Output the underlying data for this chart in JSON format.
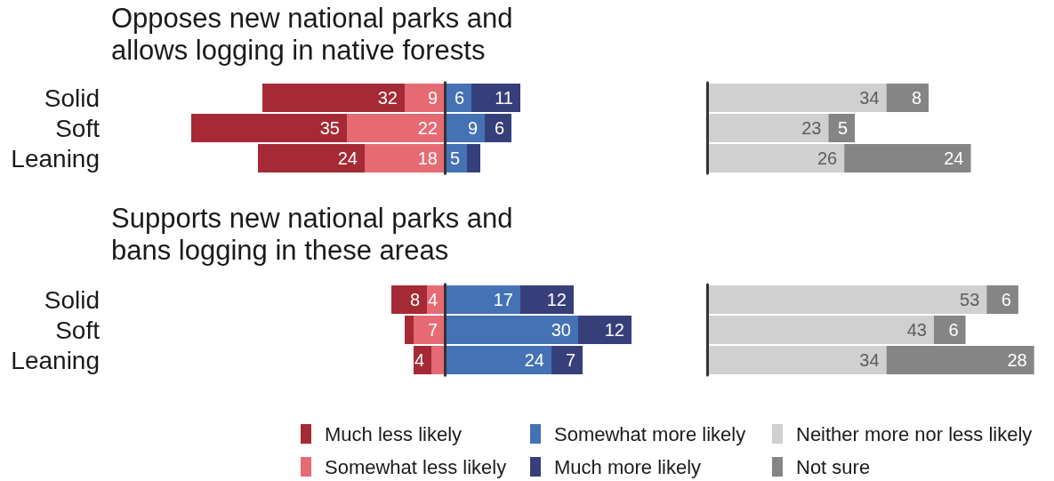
{
  "chart_data": [
    {
      "type": "bar",
      "title": "Opposes new national parks and allows logging in native forests",
      "orientation": "horizontal",
      "stacked": true,
      "categories": [
        "Solid",
        "Soft",
        "Leaning"
      ],
      "xlim": [
        57,
        0
      ],
      "tick_labels": "y",
      "data_labels": true,
      "series": [
        {
          "color": "#e66a74",
          "values": [
            9,
            22,
            18
          ]
        },
        {
          "color": "#a52a35",
          "values": [
            32,
            35,
            24
          ]
        }
      ]
    },
    {
      "type": "bar",
      "orientation": "horizontal",
      "stacked": true,
      "categories": [
        null,
        null,
        null
      ],
      "tick_labels": false,
      "series": [
        {
          "color": "#4472b4",
          "values": [
            6,
            9,
            5
          ],
          "value_labels": [
            "6",
            "9",
            "5"
          ]
        },
        {
          "color": "#373f7a",
          "values": [
            11,
            6,
            3
          ],
          "value_labels": [
            "11",
            "6",
            null
          ]
        }
      ]
    },
    {
      "type": "bar",
      "orientation": "horizontal",
      "stacked": true,
      "categories": [
        null,
        null,
        null
      ],
      "tick_labels": false,
      "data_labels": true,
      "series": [
        {
          "color": "#d0d0d0",
          "values": [
            34,
            23,
            26
          ]
        },
        {
          "color": "#858585",
          "values": [
            8,
            5,
            24
          ]
        }
      ]
    },
    {
      "type": "bar",
      "title": "Supports new national parks and bans logging in these areas",
      "orientation": "horizontal",
      "stacked": true,
      "categories": [
        "Solid",
        "Soft",
        "Leaning"
      ],
      "xlim": [
        12,
        0
      ],
      "tick_labels": "y",
      "legend": "bottom",
      "series": [
        {
          "name": "Somewhat less likely",
          "color": "#e66a74",
          "values": [
            4,
            7,
            3
          ],
          "value_labels": [
            "4",
            "7",
            null
          ]
        },
        {
          "name": "Much less likely",
          "color": "#a52a35",
          "values": [
            8,
            2,
            4
          ],
          "value_labels": [
            "8",
            null,
            "4"
          ]
        }
      ]
    },
    {
      "type": "bar",
      "orientation": "horizontal",
      "stacked": true,
      "categories": [
        null,
        null,
        null
      ],
      "tick_labels": false,
      "legend": "bottom",
      "data_labels": true,
      "series": [
        {
          "name": "Somewhat more likely",
          "color": "#4472b4",
          "values": [
            17,
            30,
            24
          ]
        },
        {
          "name": "Much more likely",
          "color": "#373f7a",
          "values": [
            12,
            12,
            7
          ]
        }
      ]
    },
    {
      "type": "bar",
      "orientation": "horizontal",
      "stacked": true,
      "categories": [
        null,
        null,
        null
      ],
      "tick_labels": false,
      "legend": "bottom",
      "data_labels": true,
      "series": [
        {
          "name": "Neither more nor less likely",
          "color": "#d0d0d0",
          "values": [
            53,
            43,
            34
          ]
        },
        {
          "name": "Not sure",
          "color": "#858585",
          "values": [
            6,
            6,
            28
          ]
        }
      ]
    }
  ]
}
